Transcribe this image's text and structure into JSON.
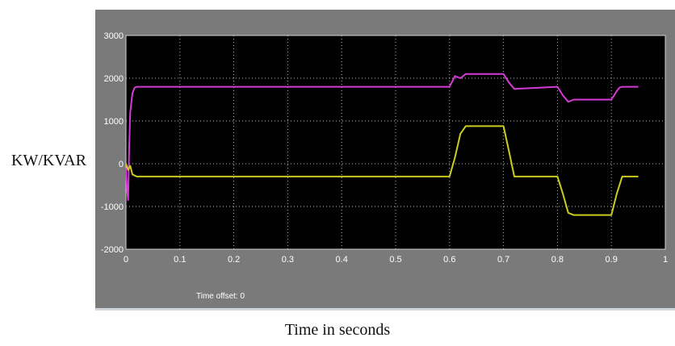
{
  "ylabel_text": "KW/KVAR",
  "xlabel_text": "Time in seconds",
  "time_offset": "Time offset:  0",
  "colors": {
    "frame": "#7a7a7a",
    "plot_bg": "#000000",
    "grid": "#bbbbbb",
    "series_1": "#d63ad6",
    "series_2": "#cccc1e",
    "tick_text": "#ffffff"
  },
  "chart_data": {
    "type": "line",
    "title": "",
    "xlabel": "Time in seconds",
    "ylabel": "KW/KVAR",
    "xlim": [
      0,
      1
    ],
    "ylim": [
      -2000,
      3000
    ],
    "grid": true,
    "x_ticks": [
      "0",
      "0.1",
      "0.2",
      "0.3",
      "0.4",
      "0.5",
      "0.6",
      "0.7",
      "0.8",
      "0.9",
      "1"
    ],
    "y_ticks": [
      "3000",
      "2000",
      "1000",
      "0",
      "-1000",
      "-2000"
    ],
    "series": [
      {
        "color": "#d63ad6",
        "x": [
          0,
          0.002,
          0.004,
          0.006,
          0.008,
          0.012,
          0.016,
          0.02,
          0.6,
          0.61,
          0.62,
          0.63,
          0.7,
          0.71,
          0.72,
          0.8,
          0.81,
          0.82,
          0.83,
          0.9,
          0.91,
          0.915,
          0.92,
          0.95
        ],
        "y": [
          -100,
          -600,
          -850,
          400,
          1200,
          1650,
          1780,
          1800,
          1800,
          2050,
          2000,
          2100,
          2100,
          1900,
          1750,
          1800,
          1600,
          1450,
          1500,
          1500,
          1700,
          1780,
          1800,
          1800
        ]
      },
      {
        "color": "#cccc1e",
        "x": [
          0,
          0.004,
          0.008,
          0.012,
          0.02,
          0.6,
          0.61,
          0.62,
          0.63,
          0.7,
          0.71,
          0.72,
          0.8,
          0.81,
          0.82,
          0.83,
          0.9,
          0.91,
          0.92,
          0.95
        ],
        "y": [
          0,
          -150,
          -50,
          -250,
          -300,
          -300,
          150,
          700,
          880,
          880,
          300,
          -300,
          -300,
          -700,
          -1150,
          -1200,
          -1200,
          -700,
          -300,
          -300
        ]
      }
    ]
  }
}
